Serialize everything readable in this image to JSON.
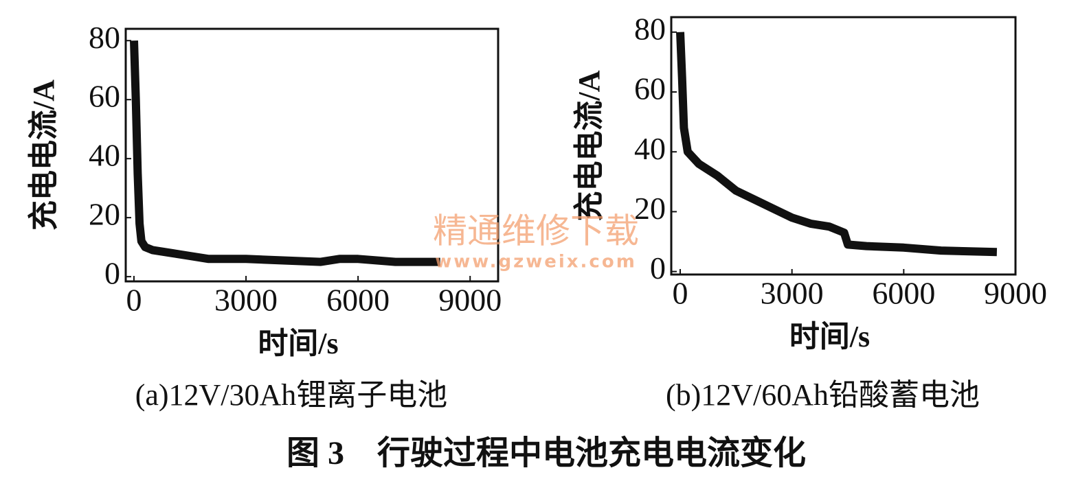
{
  "chart_data": [
    {
      "type": "line",
      "subtitle": "(a)12V/30Ah锂离子电池",
      "x_label": "时间/s",
      "y_label": "充电电流/A",
      "xlim": [
        -220,
        9750
      ],
      "ylim": [
        -1.6,
        84
      ],
      "xticks": [
        0,
        3000,
        6000,
        9000
      ],
      "yticks": [
        0,
        20,
        40,
        60,
        80
      ],
      "series": [
        {
          "color": "#111111",
          "x": [
            0,
            50,
            100,
            150,
            200,
            300,
            500,
            1000,
            1500,
            2000,
            3000,
            4000,
            5000,
            5500,
            6000,
            7000,
            8200
          ],
          "values": [
            80,
            60,
            35,
            18,
            12,
            10,
            9,
            8,
            7,
            6,
            6,
            5.5,
            5,
            6,
            6,
            5,
            5
          ]
        }
      ]
    },
    {
      "type": "line",
      "subtitle": "(b)12V/60Ah铅酸蓄电池",
      "x_label": "时间/s",
      "y_label": "充电电流/A",
      "xlim": [
        -240,
        9000
      ],
      "ylim": [
        -1,
        85
      ],
      "xticks": [
        0,
        3000,
        6000,
        9000
      ],
      "yticks": [
        0,
        20,
        40,
        60,
        80
      ],
      "series": [
        {
          "color": "#111111",
          "x": [
            0,
            50,
            100,
            200,
            500,
            1000,
            1500,
            2000,
            2500,
            3000,
            3500,
            4000,
            4400,
            4500,
            5000,
            6000,
            7000,
            8500
          ],
          "values": [
            80,
            65,
            48,
            40,
            36,
            32,
            27,
            24,
            21,
            18,
            16,
            15,
            13,
            9,
            8.5,
            8,
            7,
            6.5
          ]
        }
      ]
    }
  ],
  "figure_caption": "图 3　行驶过程中电池充电电流变化",
  "watermark": {
    "text": "精通维修下载",
    "url": "www.gzweix.com"
  }
}
